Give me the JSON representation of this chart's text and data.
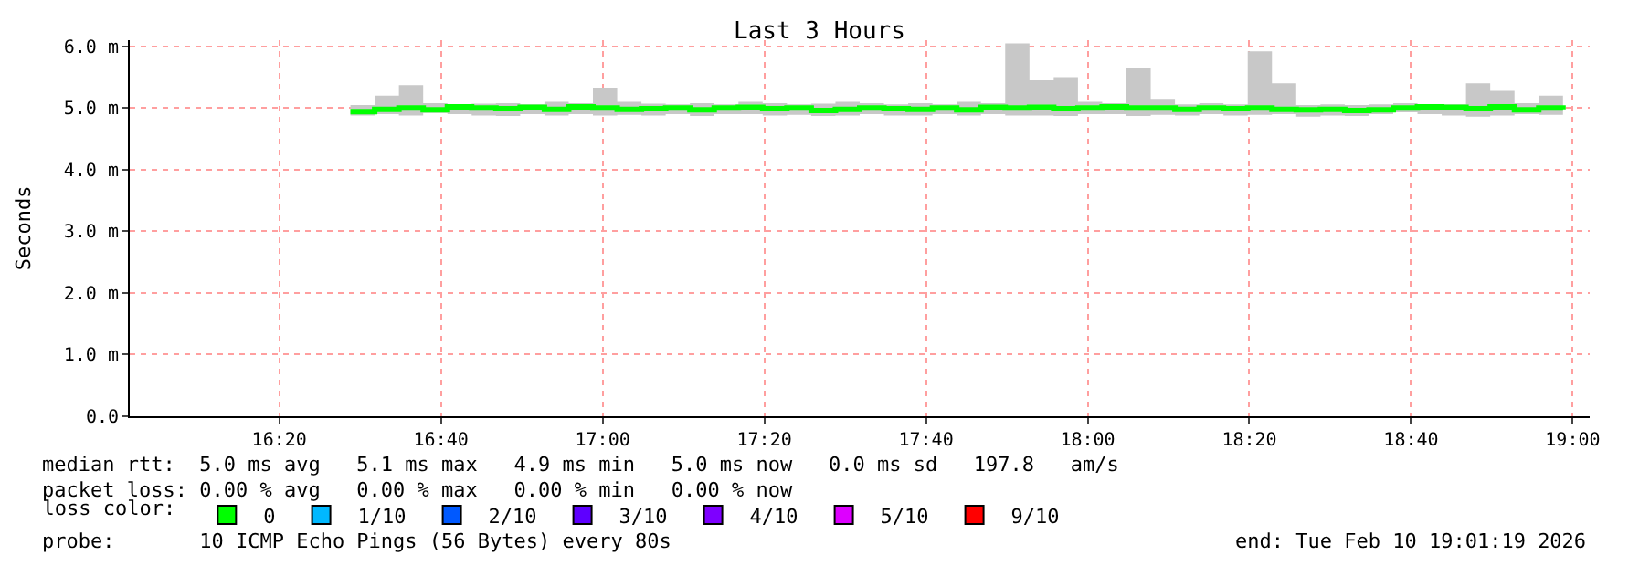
{
  "chart_data": {
    "type": "step",
    "title": "Last 3 Hours",
    "ylabel": "Seconds",
    "legend_title": "loss color:",
    "x": [
      16.48,
      16.53,
      16.58,
      16.63,
      16.68,
      16.73,
      16.78,
      16.83,
      16.88,
      16.93,
      16.98,
      17.03,
      17.08,
      17.13,
      17.18,
      17.23,
      17.28,
      17.33,
      17.38,
      17.43,
      17.48,
      17.53,
      17.58,
      17.63,
      17.68,
      17.73,
      17.78,
      17.83,
      17.88,
      17.93,
      17.98,
      18.03,
      18.08,
      18.13,
      18.18,
      18.23,
      18.28,
      18.33,
      18.38,
      18.43,
      18.48,
      18.53,
      18.58,
      18.63,
      18.68,
      18.73,
      18.78,
      18.83,
      18.88,
      18.93,
      18.98
    ],
    "series": [
      {
        "name": "0",
        "color": "#00ff00",
        "values": [
          4.94,
          4.98,
          5.0,
          4.97,
          5.02,
          5.0,
          4.99,
          5.01,
          4.98,
          5.02,
          5.0,
          4.98,
          4.99,
          5.0,
          4.97,
          5.0,
          5.01,
          4.99,
          5.0,
          4.96,
          4.98,
          5.0,
          4.99,
          4.98,
          5.0,
          4.97,
          5.01,
          5.0,
          5.01,
          4.99,
          5.0,
          5.02,
          5.0,
          5.0,
          4.98,
          5.0,
          4.99,
          5.0,
          4.98,
          4.97,
          4.98,
          4.96,
          4.97,
          5.0,
          5.02,
          5.01,
          4.99,
          5.02,
          4.97,
          5.0,
          4.98
        ],
        "lower": [
          4.88,
          4.9,
          4.88,
          4.92,
          4.9,
          4.88,
          4.87,
          4.9,
          4.88,
          4.9,
          4.88,
          4.89,
          4.88,
          4.9,
          4.87,
          4.9,
          4.9,
          4.88,
          4.89,
          4.87,
          4.88,
          4.9,
          4.88,
          4.88,
          4.9,
          4.88,
          4.9,
          4.88,
          4.88,
          4.87,
          4.9,
          4.9,
          4.87,
          4.89,
          4.88,
          4.9,
          4.88,
          4.89,
          4.9,
          4.86,
          4.88,
          4.87,
          4.9,
          4.93,
          4.9,
          4.88,
          4.86,
          4.88,
          4.9,
          4.89,
          4.9
        ],
        "upper": [
          5.05,
          5.2,
          5.37,
          5.08,
          5.06,
          5.07,
          5.08,
          5.06,
          5.1,
          5.08,
          5.33,
          5.1,
          5.07,
          5.06,
          5.08,
          5.06,
          5.1,
          5.08,
          5.06,
          5.07,
          5.1,
          5.08,
          5.06,
          5.08,
          5.06,
          5.1,
          5.08,
          6.05,
          5.45,
          5.5,
          5.1,
          5.08,
          5.65,
          5.15,
          5.06,
          5.08,
          5.06,
          5.92,
          5.4,
          5.05,
          5.06,
          5.05,
          5.06,
          5.08,
          5.06,
          5.06,
          5.4,
          5.28,
          5.08,
          5.2,
          5.08
        ]
      },
      {
        "name": "1/10",
        "color": "#00b8ff",
        "values": [
          null,
          null,
          null,
          null,
          null,
          null,
          null,
          null,
          null,
          null,
          null,
          null,
          null,
          null,
          null,
          null,
          null,
          null,
          null,
          null,
          null,
          null,
          null,
          null,
          null,
          null,
          null,
          null,
          null,
          null,
          null,
          null,
          null,
          null,
          null,
          null,
          null,
          null,
          null,
          null,
          null,
          null,
          null,
          null,
          null,
          null,
          null,
          null,
          null,
          null,
          null
        ]
      },
      {
        "name": "2/10",
        "color": "#0059ff",
        "values": [
          null,
          null,
          null,
          null,
          null,
          null,
          null,
          null,
          null,
          null,
          null,
          null,
          null,
          null,
          null,
          null,
          null,
          null,
          null,
          null,
          null,
          null,
          null,
          null,
          null,
          null,
          null,
          null,
          null,
          null,
          null,
          null,
          null,
          null,
          null,
          null,
          null,
          null,
          null,
          null,
          null,
          null,
          null,
          null,
          null,
          null,
          null,
          null,
          null,
          null,
          null
        ]
      },
      {
        "name": "3/10",
        "color": "#5e00ff",
        "values": [
          null,
          null,
          null,
          null,
          null,
          null,
          null,
          null,
          null,
          null,
          null,
          null,
          null,
          null,
          null,
          null,
          null,
          null,
          null,
          null,
          null,
          null,
          null,
          null,
          null,
          null,
          null,
          null,
          null,
          null,
          null,
          null,
          null,
          null,
          null,
          null,
          null,
          null,
          null,
          null,
          null,
          null,
          null,
          null,
          null,
          null,
          null,
          null,
          null,
          null,
          null
        ]
      },
      {
        "name": "4/10",
        "color": "#7e00ff",
        "values": [
          null,
          null,
          null,
          null,
          null,
          null,
          null,
          null,
          null,
          null,
          null,
          null,
          null,
          null,
          null,
          null,
          null,
          null,
          null,
          null,
          null,
          null,
          null,
          null,
          null,
          null,
          null,
          null,
          null,
          null,
          null,
          null,
          null,
          null,
          null,
          null,
          null,
          null,
          null,
          null,
          null,
          null,
          null,
          null,
          null,
          null,
          null,
          null,
          null,
          null,
          null
        ]
      },
      {
        "name": "5/10",
        "color": "#dd00ff",
        "values": [
          null,
          null,
          null,
          null,
          null,
          null,
          null,
          null,
          null,
          null,
          null,
          null,
          null,
          null,
          null,
          null,
          null,
          null,
          null,
          null,
          null,
          null,
          null,
          null,
          null,
          null,
          null,
          null,
          null,
          null,
          null,
          null,
          null,
          null,
          null,
          null,
          null,
          null,
          null,
          null,
          null,
          null,
          null,
          null,
          null,
          null,
          null,
          null,
          null,
          null,
          null
        ]
      },
      {
        "name": "9/10",
        "color": "#ff0000",
        "values": [
          null,
          null,
          null,
          null,
          null,
          null,
          null,
          null,
          null,
          null,
          null,
          null,
          null,
          null,
          null,
          null,
          null,
          null,
          null,
          null,
          null,
          null,
          null,
          null,
          null,
          null,
          null,
          null,
          null,
          null,
          null,
          null,
          null,
          null,
          null,
          null,
          null,
          null,
          null,
          null,
          null,
          null,
          null,
          null,
          null,
          null,
          null,
          null,
          null,
          null,
          null
        ]
      }
    ],
    "xlim": [
      16.025,
      19.035
    ],
    "ylim": [
      0,
      6.1
    ],
    "xticks": [
      {
        "value": 16.333333,
        "label": "16:20"
      },
      {
        "value": 16.666667,
        "label": "16:40"
      },
      {
        "value": 17,
        "label": "17:00"
      },
      {
        "value": 17.333333,
        "label": "17:20"
      },
      {
        "value": 17.666667,
        "label": "17:40"
      },
      {
        "value": 18,
        "label": "18:00"
      },
      {
        "value": 18.333333,
        "label": "18:20"
      },
      {
        "value": 18.666667,
        "label": "18:40"
      },
      {
        "value": 19,
        "label": "19:00"
      }
    ],
    "yticks": [
      {
        "value": 0,
        "label": "0.0"
      },
      {
        "value": 1,
        "label": "1.0 m"
      },
      {
        "value": 2,
        "label": "2.0 m"
      },
      {
        "value": 3,
        "label": "3.0 m"
      },
      {
        "value": 4,
        "label": "4.0 m"
      },
      {
        "value": 5,
        "label": "5.0 m"
      },
      {
        "value": 6,
        "label": "6.0 m"
      }
    ],
    "grid": true,
    "legend": "bottom",
    "annotations": [
      "median rtt:  5.0 ms avg   5.1 ms max   4.9 ms min   5.0 ms now   0.0 ms sd   197.8   am/s",
      "packet loss: 0.00 % avg   0.00 % max   0.00 % min   0.00 % now",
      "probe:       10 ICMP Echo Pings (56 Bytes) every 80s",
      "end: Tue Feb 10 19:01:19 2026"
    ]
  }
}
